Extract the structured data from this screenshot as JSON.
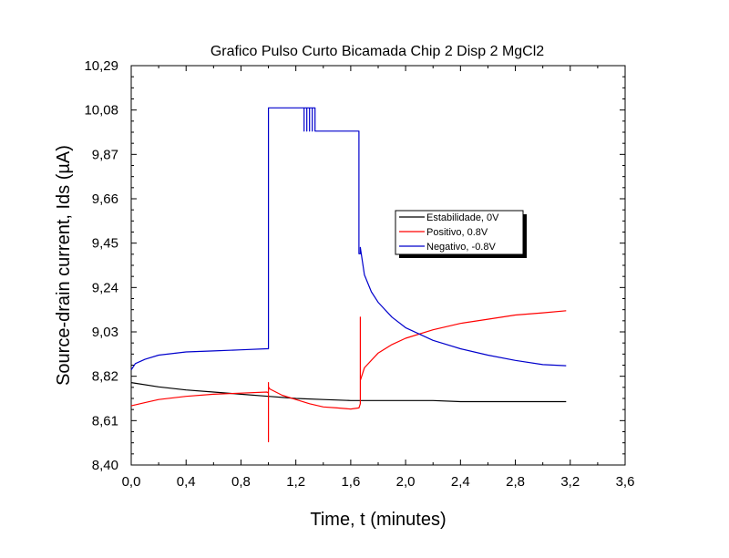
{
  "chart_data": {
    "type": "line",
    "title": "Grafico Pulso Curto Bicamada Chip 2 Disp 2 MgCl2",
    "xlabel": "Time, t (minutes)",
    "ylabel": "Source-drain current, Ids (µA)",
    "xlim": [
      0.0,
      3.6
    ],
    "ylim": [
      8.4,
      10.29
    ],
    "x_ticks": [
      "0,0",
      "0,4",
      "0,8",
      "1,2",
      "1,6",
      "2,0",
      "2,4",
      "2,8",
      "3,2",
      "3,6"
    ],
    "y_ticks": [
      "8,40",
      "8,61",
      "8,82",
      "9,03",
      "9,24",
      "9,45",
      "9,66",
      "9,87",
      "10,08",
      "10,29"
    ],
    "grid": false,
    "legend_position": "center-right",
    "series": [
      {
        "name": "Estabilidade, 0V",
        "color": "#000000",
        "x": [
          0.0,
          0.2,
          0.4,
          0.6,
          0.8,
          1.0,
          1.2,
          1.4,
          1.6,
          1.8,
          2.0,
          2.2,
          2.4,
          2.6,
          2.8,
          3.0,
          3.17
        ],
        "y": [
          8.79,
          8.77,
          8.755,
          8.745,
          8.735,
          8.725,
          8.715,
          8.71,
          8.705,
          8.705,
          8.705,
          8.705,
          8.7,
          8.7,
          8.7,
          8.7,
          8.7
        ]
      },
      {
        "name": "Positivo, 0.8V",
        "color": "#ff0000",
        "x": [
          0.0,
          0.1,
          0.2,
          0.4,
          0.6,
          0.8,
          0.99,
          1.0,
          1.0,
          1.0,
          1.0,
          1.01,
          1.1,
          1.2,
          1.3,
          1.4,
          1.5,
          1.6,
          1.66,
          1.67,
          1.67,
          1.67,
          1.7,
          1.8,
          1.9,
          2.0,
          2.2,
          2.4,
          2.6,
          2.8,
          3.0,
          3.17
        ],
        "y": [
          8.68,
          8.695,
          8.71,
          8.725,
          8.735,
          8.74,
          8.745,
          8.74,
          8.51,
          8.79,
          8.77,
          8.76,
          8.73,
          8.71,
          8.69,
          8.675,
          8.67,
          8.665,
          8.67,
          8.69,
          9.1,
          8.8,
          8.86,
          8.93,
          8.97,
          9.0,
          9.04,
          9.07,
          9.09,
          9.11,
          9.12,
          9.13
        ]
      },
      {
        "name": "Negativo, -0.8V",
        "color": "#0000cc",
        "x": [
          0.0,
          0.03,
          0.1,
          0.2,
          0.4,
          0.6,
          0.8,
          0.99,
          1.0,
          1.0,
          1.26,
          1.26,
          1.26,
          1.28,
          1.28,
          1.28,
          1.3,
          1.3,
          1.3,
          1.32,
          1.32,
          1.32,
          1.34,
          1.34,
          1.34,
          1.66,
          1.66,
          1.67,
          1.67,
          1.7,
          1.75,
          1.8,
          1.9,
          2.0,
          2.2,
          2.4,
          2.6,
          2.8,
          3.0,
          3.17
        ],
        "y": [
          8.85,
          8.88,
          8.9,
          8.92,
          8.935,
          8.94,
          8.945,
          8.95,
          8.95,
          10.09,
          10.09,
          9.98,
          10.09,
          10.09,
          9.98,
          10.09,
          10.09,
          9.98,
          10.09,
          10.09,
          9.98,
          10.09,
          10.09,
          9.98,
          9.98,
          9.98,
          9.4,
          9.4,
          9.43,
          9.3,
          9.22,
          9.17,
          9.1,
          9.05,
          8.99,
          8.95,
          8.92,
          8.895,
          8.875,
          8.87
        ]
      }
    ]
  }
}
